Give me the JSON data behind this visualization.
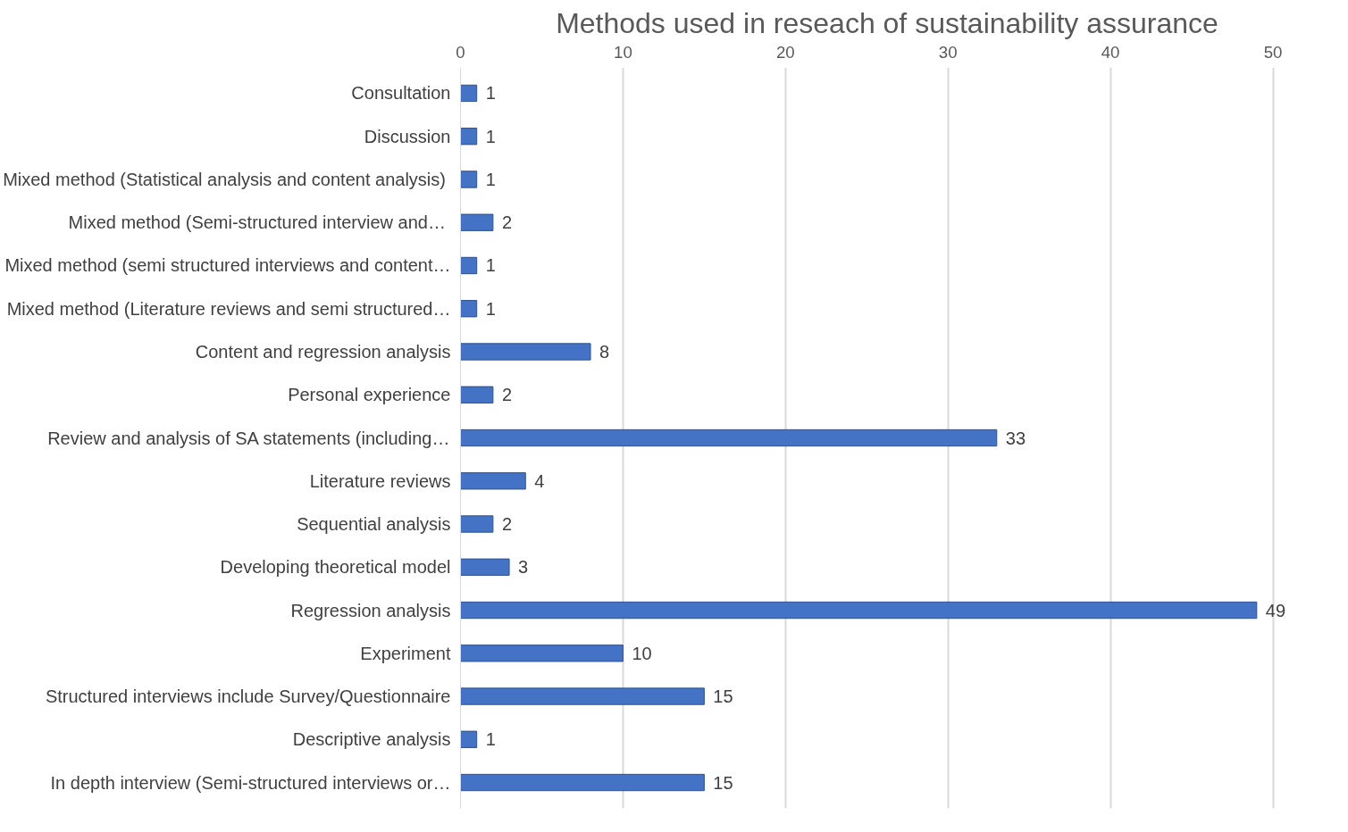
{
  "chart_data": {
    "type": "bar",
    "orientation": "horizontal",
    "title": "Methods used in reseach of sustainability assurance",
    "categories": [
      "Consultation",
      "Discussion",
      "Mixed method (Statistical analysis  and content analysis)",
      "Mixed method  (Semi-structured interview and…",
      "Mixed method (semi structured interviews and content…",
      "Mixed method (Literature reviews and semi structured…",
      "Content and regression analysis",
      "Personal experience",
      "Review and analysis of SA statements (including…",
      "Literature reviews",
      "Sequential analysis",
      "Developing theoretical model",
      "Regression analysis",
      "Experiment",
      "Structured interviews include Survey/Questionnaire",
      "Descriptive analysis",
      "In depth interview (Semi-structured interviews or…"
    ],
    "values": [
      1,
      1,
      1,
      2,
      1,
      1,
      8,
      2,
      33,
      4,
      2,
      3,
      49,
      10,
      15,
      1,
      15
    ],
    "color": "#4472c4",
    "xlim": [
      0,
      50
    ],
    "xticks": [
      0,
      10,
      20,
      30,
      40,
      50
    ],
    "grid": "x",
    "data_labels": true
  }
}
